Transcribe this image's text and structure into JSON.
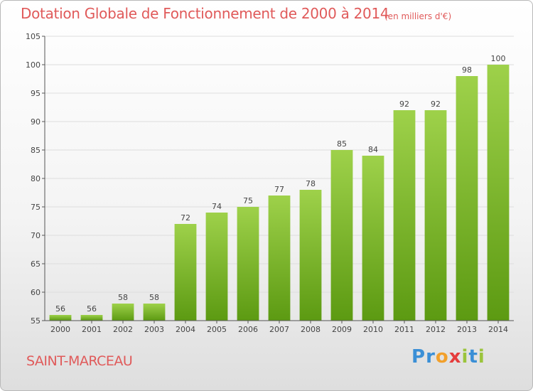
{
  "chart_data": {
    "type": "bar",
    "title": "Dotation Globale de Fonctionnement de 2000 à 2014",
    "subtitle": "(en milliers d'€)",
    "categories": [
      "2000",
      "2001",
      "2002",
      "2003",
      "2004",
      "2005",
      "2006",
      "2007",
      "2008",
      "2009",
      "2010",
      "2011",
      "2012",
      "2013",
      "2014"
    ],
    "values": [
      56,
      56,
      58,
      58,
      72,
      74,
      75,
      77,
      78,
      85,
      84,
      92,
      92,
      98,
      100
    ],
    "ylim": [
      55,
      105
    ],
    "yticks": [
      55,
      60,
      65,
      70,
      75,
      80,
      85,
      90,
      95,
      100,
      105
    ],
    "grid": true,
    "colors": {
      "bar_top": "#9ed14a",
      "bar_bottom": "#5c9a12",
      "grid": "#dddddd",
      "axis": "#555555",
      "accent": "#e05a5a"
    }
  },
  "footer": {
    "commune": "SAINT-MARCEAU",
    "brand_letters": [
      {
        "ch": "P",
        "color": "#3a8fd6"
      },
      {
        "ch": "r",
        "color": "#3a8fd6"
      },
      {
        "ch": "o",
        "color": "#f2a02b"
      },
      {
        "ch": "x",
        "color": "#e53c3c"
      },
      {
        "ch": "i",
        "color": "#9bc43c"
      },
      {
        "ch": "t",
        "color": "#3a8fd6"
      },
      {
        "ch": "i",
        "color": "#9bc43c"
      }
    ]
  }
}
